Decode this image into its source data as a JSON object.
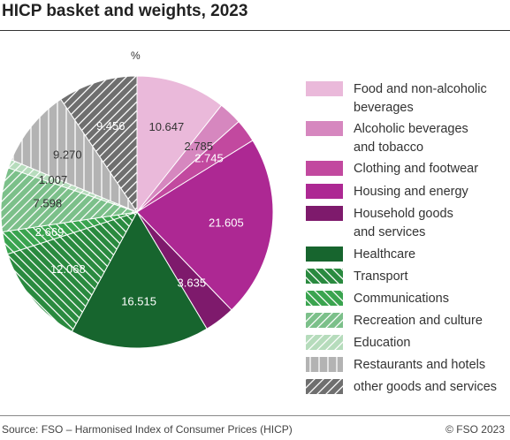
{
  "header": {
    "title": "HICP basket and weights, 2023"
  },
  "footer": {
    "source": "Source: FSO – Harmonised Index of Consumer Prices (HICP)",
    "copyright": "© FSO 2023"
  },
  "chart_data": {
    "type": "pie",
    "unit_label": "%",
    "legend_position": "right",
    "slices": [
      {
        "label": "Food and non-alcoholic beverages",
        "value": 10.647,
        "value_label": "10.647",
        "color": "#eab9da",
        "pattern": "none"
      },
      {
        "label": "Alcoholic beverages and tobacco",
        "value": 2.785,
        "value_label": "2.785",
        "color": "#d687bf",
        "pattern": "none"
      },
      {
        "label": "Clothing and footwear",
        "value": 2.745,
        "value_label": "2.745",
        "color": "#c2499f",
        "pattern": "none"
      },
      {
        "label": "Housing and energy",
        "value": 21.605,
        "value_label": "21.605",
        "color": "#ad2893",
        "pattern": "none"
      },
      {
        "label": "Household goods and services",
        "value": 3.635,
        "value_label": "3.635",
        "color": "#7e1a6c",
        "pattern": "none"
      },
      {
        "label": "Healthcare",
        "value": 16.515,
        "value_label": "16.515",
        "color": "#17652e",
        "pattern": "none"
      },
      {
        "label": "Transport",
        "value": 12.068,
        "value_label": "12.068",
        "color": "#2a8a3f",
        "pattern": "backslash"
      },
      {
        "label": "Communications",
        "value": 2.669,
        "value_label": "2.669",
        "color": "#3aa44f",
        "pattern": "backslash"
      },
      {
        "label": "Recreation and culture",
        "value": 7.598,
        "value_label": "7.598",
        "color": "#7cc08a",
        "pattern": "slash"
      },
      {
        "label": "Education",
        "value": 1.007,
        "value_label": "1.007",
        "color": "#b6dcbc",
        "pattern": "slash"
      },
      {
        "label": "Restaurants and hotels",
        "value": 9.27,
        "value_label": "9.270",
        "color": "#b3b3b3",
        "pattern": "vertical"
      },
      {
        "label": "other goods and services",
        "value": 9.456,
        "value_label": "9.456",
        "color": "#6f6f6f",
        "pattern": "slash"
      }
    ]
  },
  "legend": {
    "items": [
      {
        "lines": [
          "Food and non-alcoholic",
          "beverages"
        ]
      },
      {
        "lines": [
          "Alcoholic beverages",
          "and tobacco"
        ]
      },
      {
        "lines": [
          "Clothing and footwear"
        ]
      },
      {
        "lines": [
          "Housing and energy"
        ]
      },
      {
        "lines": [
          "Household goods",
          "and services"
        ]
      },
      {
        "lines": [
          "Healthcare"
        ]
      },
      {
        "lines": [
          "Transport"
        ]
      },
      {
        "lines": [
          "Communications"
        ]
      },
      {
        "lines": [
          "Recreation and culture"
        ]
      },
      {
        "lines": [
          "Education"
        ]
      },
      {
        "lines": [
          "Restaurants and hotels"
        ]
      },
      {
        "lines": [
          "other goods and services"
        ]
      }
    ]
  }
}
